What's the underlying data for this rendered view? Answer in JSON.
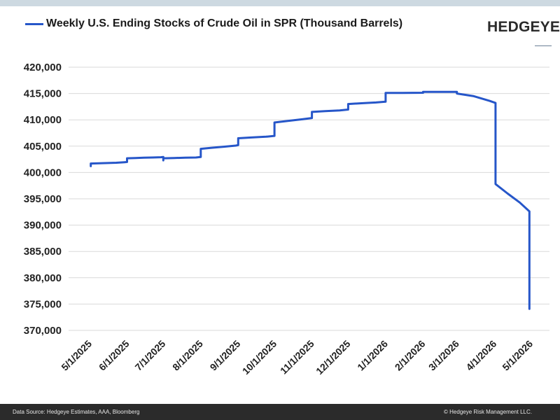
{
  "chart_data": {
    "type": "line",
    "title": "",
    "xlabel": "",
    "ylabel": "",
    "ylim": [
      370000,
      420000
    ],
    "yticks": [
      "420,000",
      "415,000",
      "410,000",
      "405,000",
      "400,000",
      "395,000",
      "390,000",
      "385,000",
      "380,000",
      "375,000",
      "370,000"
    ],
    "categories": [
      "5/1/2025",
      "6/1/2025",
      "7/1/2025",
      "8/1/2025",
      "9/1/2025",
      "10/1/2025",
      "11/1/2025",
      "12/1/2025",
      "1/1/2026",
      "2/1/2026",
      "3/1/2026",
      "4/1/2026",
      "5/1/2026"
    ],
    "grid": true,
    "legend_position": "top-left",
    "series": [
      {
        "name": "Weekly U.S. Ending Stocks of Crude Oil in SPR  (Thousand Barrels)",
        "color": "#2656c9",
        "points": [
          [
            "2025-05-02",
            401200
          ],
          [
            "2025-05-02",
            401700
          ],
          [
            "2025-05-09",
            401750
          ],
          [
            "2025-05-16",
            401800
          ],
          [
            "2025-05-23",
            401850
          ],
          [
            "2025-05-30",
            401950
          ],
          [
            "2025-06-01",
            402000
          ],
          [
            "2025-06-01",
            402700
          ],
          [
            "2025-06-08",
            402750
          ],
          [
            "2025-06-15",
            402800
          ],
          [
            "2025-06-22",
            402850
          ],
          [
            "2025-06-29",
            402900
          ],
          [
            "2025-07-01",
            402950
          ],
          [
            "2025-07-01",
            402300
          ],
          [
            "2025-07-01",
            402700
          ],
          [
            "2025-07-10",
            402750
          ],
          [
            "2025-07-19",
            402800
          ],
          [
            "2025-07-28",
            402850
          ],
          [
            "2025-08-01",
            402950
          ],
          [
            "2025-08-01",
            404500
          ],
          [
            "2025-08-10",
            404700
          ],
          [
            "2025-08-20",
            404900
          ],
          [
            "2025-08-30",
            405100
          ],
          [
            "2025-09-01",
            405200
          ],
          [
            "2025-09-01",
            406500
          ],
          [
            "2025-09-12",
            406650
          ],
          [
            "2025-09-24",
            406800
          ],
          [
            "2025-10-01",
            406950
          ],
          [
            "2025-10-01",
            409500
          ],
          [
            "2025-10-12",
            409800
          ],
          [
            "2025-10-24",
            410100
          ],
          [
            "2025-11-01",
            410350
          ],
          [
            "2025-11-01",
            411500
          ],
          [
            "2025-11-12",
            411650
          ],
          [
            "2025-11-24",
            411800
          ],
          [
            "2025-12-01",
            411950
          ],
          [
            "2025-12-01",
            413000
          ],
          [
            "2025-12-12",
            413150
          ],
          [
            "2025-12-24",
            413300
          ],
          [
            "2026-01-01",
            413450
          ],
          [
            "2026-01-01",
            415100
          ],
          [
            "2026-01-15",
            415100
          ],
          [
            "2026-02-01",
            415150
          ],
          [
            "2026-02-01",
            415300
          ],
          [
            "2026-02-15",
            415300
          ],
          [
            "2026-03-01",
            415300
          ],
          [
            "2026-03-01",
            415000
          ],
          [
            "2026-03-15",
            414500
          ],
          [
            "2026-03-28",
            413600
          ],
          [
            "2026-04-02",
            413200
          ],
          [
            "2026-04-02",
            397800
          ],
          [
            "2026-04-12",
            396000
          ],
          [
            "2026-04-22",
            394300
          ],
          [
            "2026-04-30",
            392600
          ],
          [
            "2026-04-30",
            374100
          ]
        ]
      }
    ]
  },
  "source_note": "Data Source: Hedgeye Estimates, AAA, Bloomberg",
  "copyright": "© Hedgeye Risk Management LLC.",
  "logo_text": "HEDGEYE"
}
